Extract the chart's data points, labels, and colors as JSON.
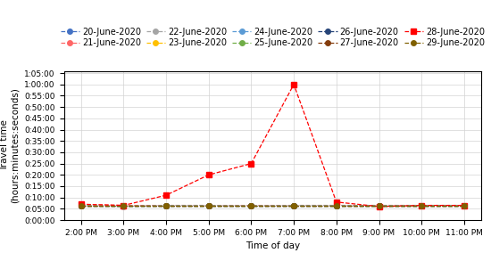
{
  "title": "",
  "xlabel": "Time of day",
  "ylabel": "Travel time\n(hours:minutes:seconds)",
  "x_ticks_labels": [
    "2:00 PM",
    "3:00 PM",
    "4:00 PM",
    "5:00 PM",
    "6:00 PM",
    "7:00 PM",
    "8:00 PM",
    "9:00 PM",
    "10:00 PM",
    "11:00 PM"
  ],
  "x_ticks": [
    14,
    15,
    16,
    17,
    18,
    19,
    20,
    21,
    22,
    23
  ],
  "ylim": [
    0,
    3960
  ],
  "ytick_step": 300,
  "series": [
    {
      "label": "20-June-2020",
      "color": "#4472C4",
      "linestyle": "--",
      "marker": "o",
      "markersize": 4,
      "values": [
        390,
        390,
        390,
        390,
        390,
        390,
        390,
        390,
        390,
        390
      ]
    },
    {
      "label": "21-June-2020",
      "color": "#FF6666",
      "linestyle": "--",
      "marker": "o",
      "markersize": 4,
      "values": [
        420,
        390,
        390,
        390,
        390,
        390,
        390,
        390,
        390,
        390
      ]
    },
    {
      "label": "22-June-2020",
      "color": "#A5A5A5",
      "linestyle": "--",
      "marker": "o",
      "markersize": 4,
      "values": [
        390,
        360,
        390,
        390,
        380,
        390,
        390,
        390,
        390,
        390
      ]
    },
    {
      "label": "23-June-2020",
      "color": "#FFC000",
      "linestyle": "--",
      "marker": "o",
      "markersize": 4,
      "values": [
        390,
        390,
        390,
        390,
        390,
        390,
        390,
        390,
        390,
        390
      ]
    },
    {
      "label": "24-June-2020",
      "color": "#5B9BD5",
      "linestyle": "--",
      "marker": "o",
      "markersize": 4,
      "values": [
        390,
        390,
        390,
        390,
        390,
        390,
        390,
        390,
        390,
        390
      ]
    },
    {
      "label": "25-June-2020",
      "color": "#70AD47",
      "linestyle": "--",
      "marker": "o",
      "markersize": 4,
      "values": [
        390,
        390,
        390,
        390,
        390,
        390,
        390,
        390,
        390,
        390
      ]
    },
    {
      "label": "26-June-2020",
      "color": "#264478",
      "linestyle": "--",
      "marker": "o",
      "markersize": 4,
      "values": [
        390,
        390,
        390,
        390,
        390,
        390,
        390,
        390,
        390,
        390
      ]
    },
    {
      "label": "27-June-2020",
      "color": "#843C0C",
      "linestyle": "--",
      "marker": "o",
      "markersize": 4,
      "values": [
        390,
        390,
        390,
        390,
        390,
        390,
        390,
        390,
        390,
        390
      ]
    },
    {
      "label": "28-June-2020",
      "color": "#FF0000",
      "linestyle": "--",
      "marker": "s",
      "markersize": 4,
      "values": [
        420,
        390,
        660,
        1200,
        1500,
        3600,
        480,
        360,
        390,
        390
      ]
    },
    {
      "label": "29-June-2020",
      "color": "#806000",
      "linestyle": "--",
      "marker": "o",
      "markersize": 4,
      "values": [
        390,
        390,
        390,
        390,
        390,
        390,
        390,
        390,
        390,
        390
      ]
    }
  ],
  "legend_ncol": 5,
  "legend_fontsize": 7,
  "axis_fontsize": 7.5,
  "tick_fontsize": 6.5,
  "background_color": "#FFFFFF",
  "grid_color": "#D3D3D3"
}
